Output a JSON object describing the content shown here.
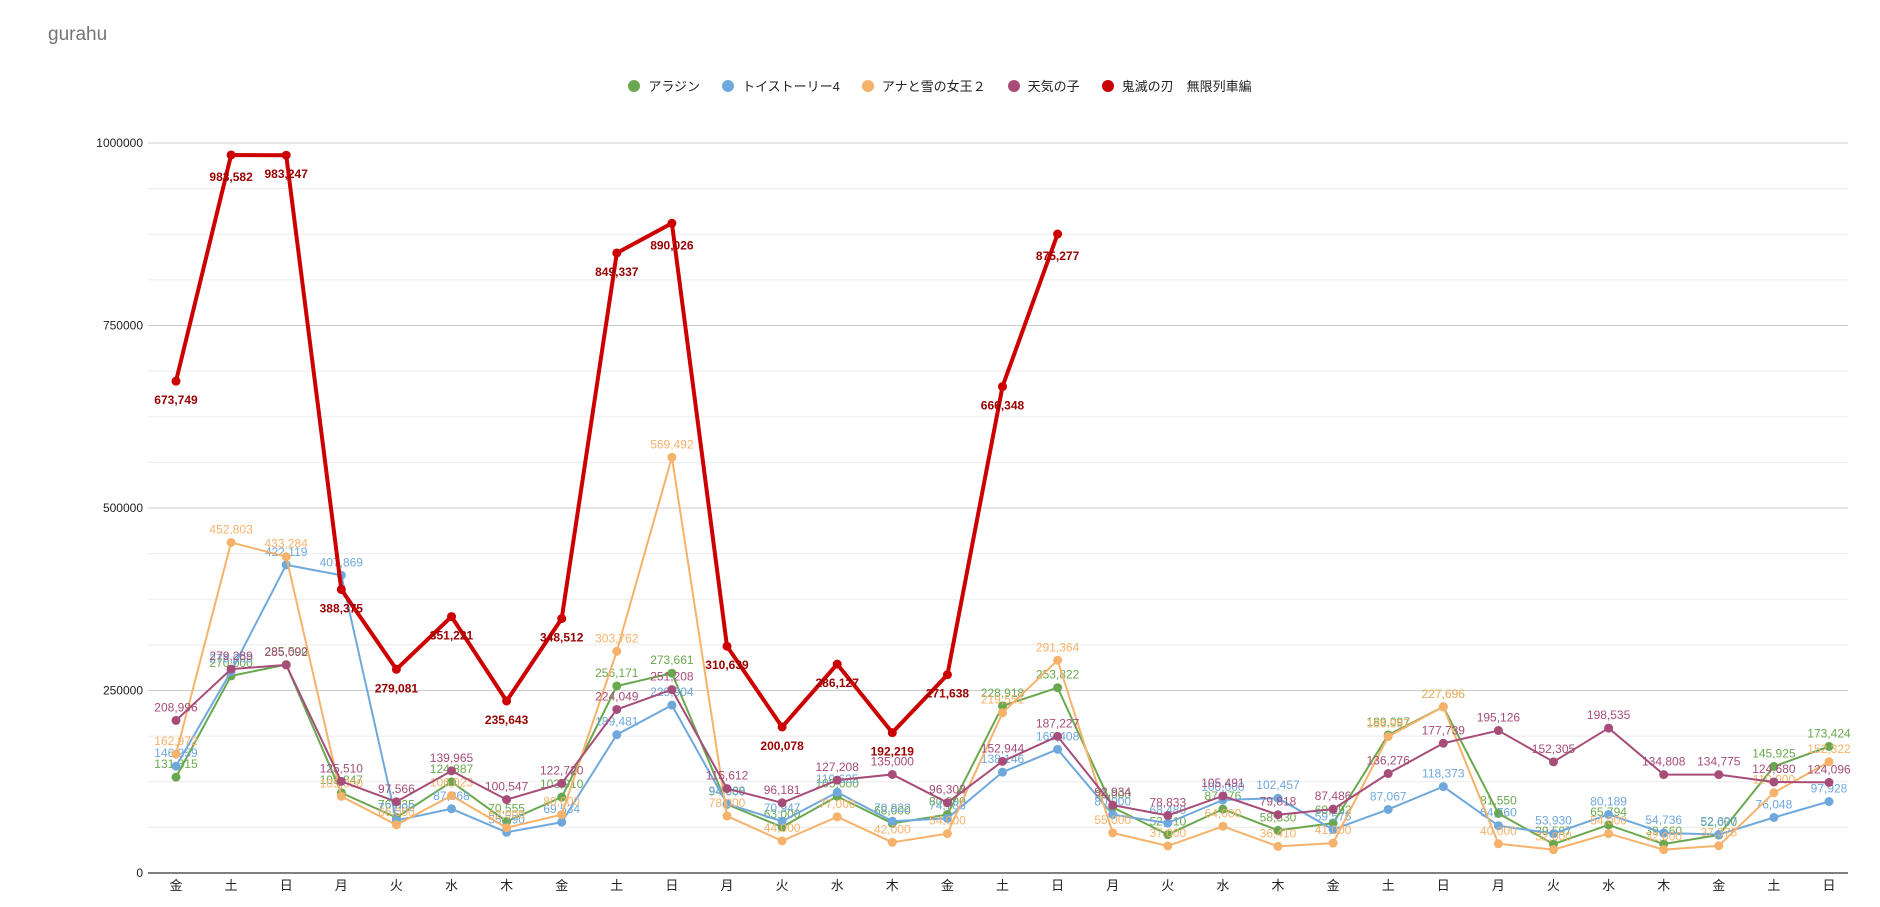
{
  "chart_data": {
    "type": "line",
    "title": "gurahu",
    "xlabel": "",
    "ylabel": "",
    "ylim": [
      0,
      1000000
    ],
    "yticks": [
      0,
      250000,
      500000,
      750000,
      1000000
    ],
    "ytick_labels": [
      "0",
      "250000",
      "500000",
      "750000",
      "1000000"
    ],
    "grid": true,
    "legend_position": "top",
    "categories": [
      "金",
      "土",
      "日",
      "月",
      "火",
      "水",
      "木",
      "金",
      "土",
      "日",
      "月",
      "火",
      "水",
      "木",
      "金",
      "土",
      "日",
      "月",
      "火",
      "水",
      "木",
      "金",
      "土",
      "日",
      "月",
      "火",
      "水",
      "木",
      "金",
      "土",
      "日"
    ],
    "series": [
      {
        "name": "アラジン",
        "color": "#6aa84f",
        "line_width": 2,
        "values": [
          131315,
          270000,
          285500,
          109847,
          76035,
          124887,
          70555,
          103910,
          256171,
          273661,
          94000,
          63000,
          105000,
          68000,
          80000,
          228918,
          253822,
          90000,
          52610,
          87476,
          58330,
          68292,
          189097,
          227696,
          81550,
          39597,
          65794,
          39660,
          52000,
          145925,
          173424
        ]
      },
      {
        "name": "トイストーリー4",
        "color": "#6fa8dc",
        "line_width": 2,
        "values": [
          146259,
          276000,
          422119,
          407869,
          72000,
          87968,
          55790,
          69534,
          189481,
          229904,
          94668,
          70947,
          110625,
          70922,
          74786,
          138146,
          169408,
          80000,
          68480,
          100000,
          102457,
          59575,
          87067,
          118373,
          64760,
          53930,
          80189,
          54736,
          52697,
          76048,
          97928
        ]
      },
      {
        "name": "アナと雪の女王２",
        "color": "#f6b26b",
        "line_width": 2,
        "values": [
          162972,
          452803,
          433284,
          105000,
          66000,
          106023,
          62000,
          80000,
          303762,
          569492,
          78000,
          44000,
          77000,
          42000,
          54000,
          219551,
          291364,
          55000,
          37000,
          64000,
          36410,
          41000,
          186997,
          227696,
          40000,
          32000,
          54000,
          32000,
          37375,
          110000,
          152322
        ]
      },
      {
        "name": "天気の子",
        "color": "#a64d79",
        "line_width": 2,
        "values": [
          208996,
          279289,
          285092,
          125510,
          97566,
          139965,
          100547,
          122720,
          224049,
          251208,
          115612,
          96181,
          127208,
          135000,
          96303,
          152944,
          187227,
          92934,
          78833,
          105491,
          79818,
          87486,
          136276,
          177739,
          195126,
          152305,
          198535,
          134808,
          134775,
          124680,
          124096
        ]
      },
      {
        "name": "鬼滅の刃　無限列車編",
        "color": "#cc0000",
        "line_width": 4,
        "values": [
          673749,
          983582,
          983247,
          388375,
          279081,
          351221,
          235643,
          348512,
          849337,
          890026,
          310639,
          200078,
          286127,
          192219,
          271638,
          666348,
          875277,
          null,
          null,
          null,
          null,
          null,
          null,
          null,
          null,
          null,
          null,
          null,
          null,
          null,
          null
        ]
      }
    ]
  }
}
